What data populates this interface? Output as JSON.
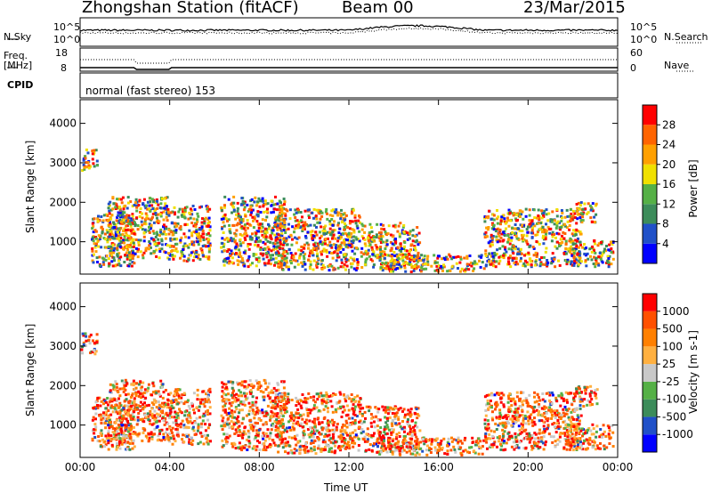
{
  "header": {
    "station": "Zhongshan Station (fitACF)",
    "beam": "Beam 00",
    "date": "23/Mar/2015"
  },
  "labels": {
    "nsky": "N.Sky",
    "nsearch": "N.Search",
    "freq": "Freq.",
    "mhz": "[MHz]",
    "nave": "Nave",
    "cpid": "CPID",
    "cpid_value": "normal (fast stereo) 153",
    "noise_tick_top_left": "10^5",
    "noise_tick_bot_left": "10^0",
    "noise_tick_top_right": "10^5",
    "noise_tick_bot_right": "10^0",
    "freq_tick_top": "18",
    "freq_tick_bot": "8",
    "nave_tick_top": "60",
    "nave_tick_bot": "0"
  },
  "colors": {
    "power": [
      "#0000ff",
      "#2050c8",
      "#3c8c5a",
      "#55b046",
      "#f0e000",
      "#ffa000",
      "#ff6400",
      "#ff0000"
    ],
    "velocity": [
      "#0000ff",
      "#2050c8",
      "#3c8c5a",
      "#55b046",
      "#c8c8c8",
      "#ffb040",
      "#ff8000",
      "#ff5000",
      "#ff0000"
    ]
  },
  "chart_data": [
    {
      "type": "heatmap",
      "title": "",
      "ylabel": "Slant Range [km]",
      "xlabel": "",
      "x_ticks": [
        "00:00",
        "04:00",
        "08:00",
        "12:00",
        "16:00",
        "20:00",
        "00:00"
      ],
      "y_ticks": [
        "1000",
        "2000",
        "3000",
        "4000"
      ],
      "ylim": [
        180,
        4600
      ],
      "colorbar": {
        "label": "Power [dB]",
        "ticks": [
          "4",
          "8",
          "12",
          "16",
          "20",
          "24",
          "28"
        ],
        "range": [
          0,
          30
        ]
      }
    },
    {
      "type": "heatmap",
      "title": "",
      "ylabel": "Slant Range [km]",
      "xlabel": "Time UT",
      "x_ticks": [
        "00:00",
        "04:00",
        "08:00",
        "12:00",
        "16:00",
        "20:00",
        "00:00"
      ],
      "y_ticks": [
        "1000",
        "2000",
        "3000",
        "4000"
      ],
      "ylim": [
        180,
        4600
      ],
      "colorbar": {
        "label": "Velocity [m s-1]",
        "ticks": [
          "1000",
          "500",
          "100",
          "25",
          "-25",
          "-100",
          "-500",
          "-1000"
        ]
      }
    }
  ]
}
